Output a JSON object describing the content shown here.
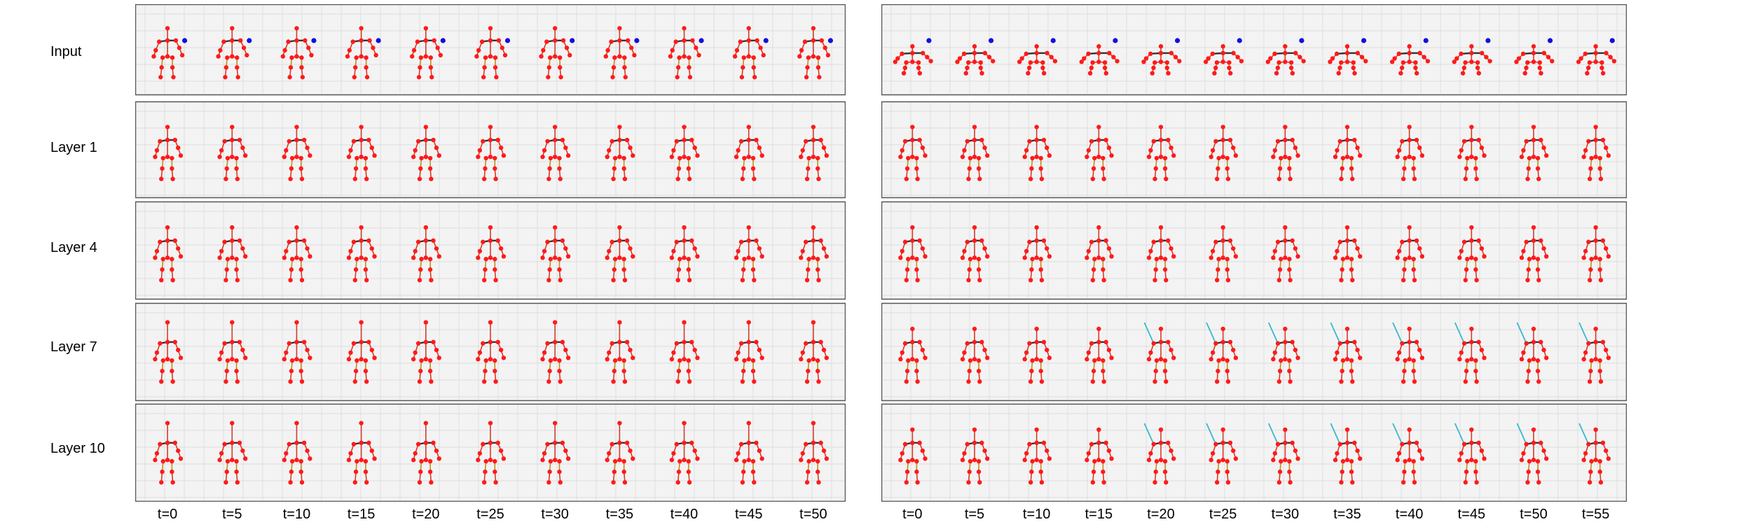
{
  "rows": [
    "Input",
    "Layer 1",
    "Layer 4",
    "Layer 7",
    "Layer 10"
  ],
  "left_time_labels": [
    "t=0",
    "t=5",
    "t=10",
    "t=15",
    "t=20",
    "t=25",
    "t=30",
    "t=35",
    "t=40",
    "t=45",
    "t=50"
  ],
  "right_time_labels": [
    "t=0",
    "t=5",
    "t=10",
    "t=15",
    "t=20",
    "t=25",
    "t=30",
    "t=35",
    "t=40",
    "t=45",
    "t=50",
    "t=55"
  ],
  "colors": {
    "joint": "#ff1a1a",
    "bone": "#d43a2a",
    "torso": "#333333",
    "attention_point": "#1010dd",
    "long_link": "#39b8d0",
    "leg_accent": "#b89020",
    "panel_bg": "#f3f3f3",
    "grid": "#d6d6d6",
    "border": "#555555"
  }
}
